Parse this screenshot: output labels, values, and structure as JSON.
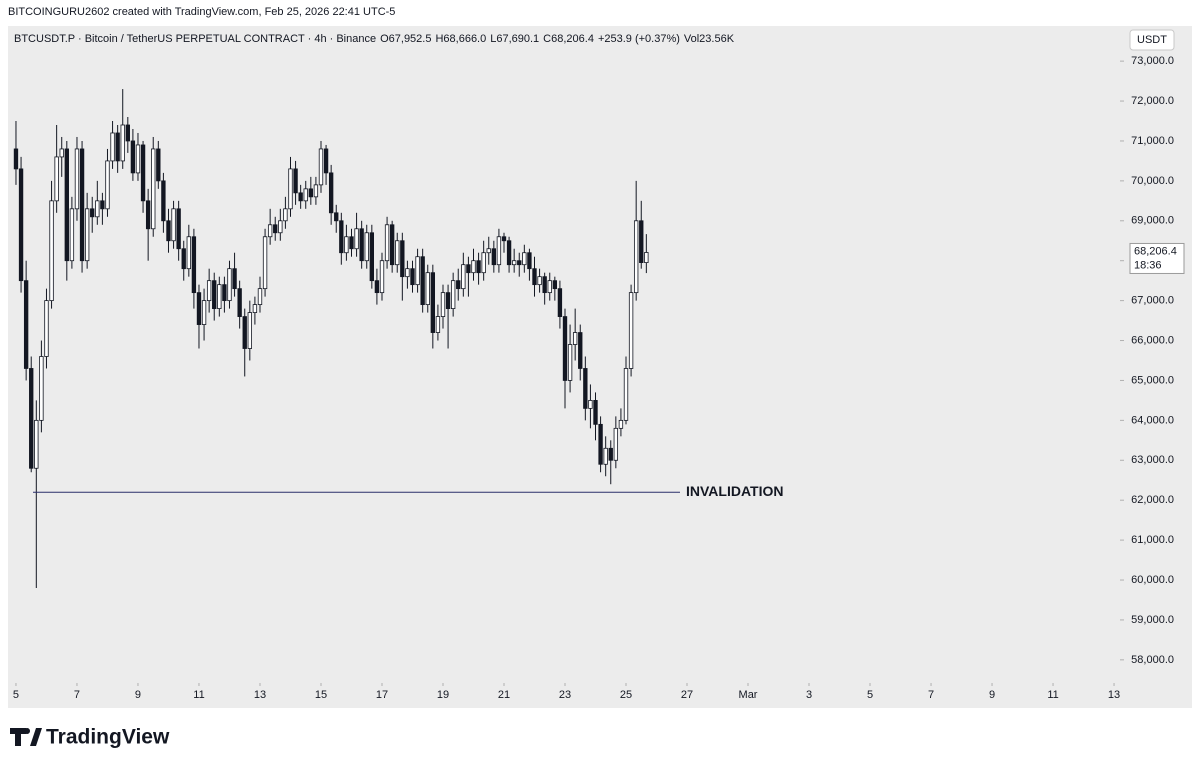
{
  "credit": "BITCOINGURU2602 created with TradingView.com, Feb 25, 2026 22:41 UTC-5",
  "footer": {
    "brand": "TradingView"
  },
  "chart_data": {
    "type": "candlestick",
    "title": "BTCUSDT.P · Bitcoin / TetherUS PERPETUAL CONTRACT · 4h · Binance",
    "legend_values": [
      "O67,952.5",
      "H68,666.0",
      "L67,690.1",
      "C68,206.4",
      "+253.9 (+0.37%)",
      "Vol23.56K"
    ],
    "currency": "USDT",
    "last_price": {
      "label": "68,206.4",
      "countdown": "18:36"
    },
    "annotation": {
      "text": "INVALIDATION",
      "value": 62200
    },
    "up_color": "#ffffff",
    "down_color": "#131722",
    "wick_color": "#131722",
    "xlim": [
      91.3,
      964.7
    ],
    "xticks": [
      {
        "value": 96,
        "label": "5"
      },
      {
        "value": 144,
        "label": "7"
      },
      {
        "value": 192,
        "label": "9"
      },
      {
        "value": 240,
        "label": "11"
      },
      {
        "value": 288,
        "label": "13"
      },
      {
        "value": 336,
        "label": "15"
      },
      {
        "value": 384,
        "label": "17"
      },
      {
        "value": 432,
        "label": "19"
      },
      {
        "value": 480,
        "label": "21"
      },
      {
        "value": 528,
        "label": "23"
      },
      {
        "value": 576,
        "label": "25"
      },
      {
        "value": 624,
        "label": "27"
      },
      {
        "value": 672,
        "label": "Mar"
      },
      {
        "value": 720,
        "label": "3"
      },
      {
        "value": 768,
        "label": "5"
      },
      {
        "value": 816,
        "label": "7"
      },
      {
        "value": 864,
        "label": "9"
      },
      {
        "value": 912,
        "label": "11"
      },
      {
        "value": 960,
        "label": "13"
      }
    ],
    "ylim": [
      57420,
      73830
    ],
    "yticks": [
      {
        "value": 58000,
        "label": "58,000.0"
      },
      {
        "value": 59000,
        "label": "59,000.0"
      },
      {
        "value": 60000,
        "label": "60,000.0"
      },
      {
        "value": 61000,
        "label": "61,000.0"
      },
      {
        "value": 62000,
        "label": "62,000.0"
      },
      {
        "value": 63000,
        "label": "63,000.0"
      },
      {
        "value": 64000,
        "label": "64,000.0"
      },
      {
        "value": 65000,
        "label": "65,000.0"
      },
      {
        "value": 66000,
        "label": "66,000.0"
      },
      {
        "value": 67000,
        "label": "67,000.0"
      },
      {
        "value": 68000,
        "label": "68,000.0"
      },
      {
        "value": 69000,
        "label": "69,000.0"
      },
      {
        "value": 70000,
        "label": "70,000.0"
      },
      {
        "value": 71000,
        "label": "71,000.0"
      },
      {
        "value": 72000,
        "label": "72,000.0"
      },
      {
        "value": 73000,
        "label": "73,000.0"
      }
    ],
    "x": [
      96,
      100,
      104,
      108,
      112,
      116,
      120,
      124,
      128,
      132,
      136,
      140,
      144,
      148,
      152,
      156,
      160,
      164,
      168,
      172,
      176,
      180,
      184,
      188,
      192,
      196,
      200,
      204,
      208,
      212,
      216,
      220,
      224,
      228,
      232,
      236,
      240,
      244,
      248,
      252,
      256,
      260,
      264,
      268,
      272,
      276,
      280,
      284,
      288,
      292,
      296,
      300,
      304,
      308,
      312,
      316,
      320,
      324,
      328,
      332,
      336,
      340,
      344,
      348,
      352,
      356,
      360,
      364,
      368,
      372,
      376,
      380,
      384,
      388,
      392,
      396,
      400,
      404,
      408,
      412,
      416,
      420,
      424,
      428,
      432,
      436,
      440,
      444,
      448,
      452,
      456,
      460,
      464,
      468,
      472,
      476,
      480,
      484,
      488,
      492,
      496,
      500,
      504,
      508,
      512,
      516,
      520,
      524,
      528,
      532,
      536,
      540,
      544,
      548,
      552,
      556,
      560,
      564,
      568,
      572,
      576,
      580,
      584,
      588,
      592
    ],
    "open": [
      70800,
      70300,
      67500,
      65300,
      62800,
      64000,
      65600,
      67000,
      69500,
      70600,
      70800,
      68000,
      69300,
      70800,
      68000,
      69300,
      69100,
      69500,
      69300,
      70500,
      71200,
      70500,
      71400,
      71000,
      70200,
      70900,
      69500,
      68800,
      70800,
      70000,
      69000,
      68500,
      69300,
      68300,
      67800,
      68600,
      67200,
      66400,
      67000,
      67500,
      66800,
      67400,
      67000,
      67800,
      67300,
      66600,
      65800,
      66700,
      66900,
      67300,
      68600,
      68900,
      68700,
      69000,
      69300,
      70300,
      69700,
      69500,
      69800,
      69600,
      69900,
      70800,
      70200,
      69200,
      69000,
      68200,
      68600,
      68300,
      68800,
      68000,
      68700,
      67500,
      67200,
      68000,
      68900,
      67900,
      68500,
      67600,
      67800,
      67400,
      68100,
      66900,
      67700,
      66200,
      66600,
      67200,
      66800,
      67500,
      67300,
      67900,
      67700,
      68000,
      67700,
      68200,
      68300,
      67900,
      68600,
      68500,
      67900,
      68000,
      67900,
      68200,
      67800,
      67400,
      67600,
      67200,
      67500,
      67300,
      66600,
      65000,
      65900,
      66200,
      65300,
      64300,
      64500,
      63900,
      62900,
      63300,
      63000,
      63800,
      64000,
      65300,
      67200,
      69000,
      67952.5
    ],
    "high": [
      71500,
      70600,
      68000,
      65600,
      64500,
      66000,
      67300,
      70000,
      71400,
      71100,
      71000,
      69600,
      71100,
      71000,
      69700,
      69600,
      70000,
      69700,
      70800,
      71500,
      71400,
      72300,
      71600,
      71300,
      71200,
      71000,
      69800,
      71100,
      71000,
      70200,
      69300,
      69500,
      69500,
      68500,
      68900,
      68800,
      67400,
      67300,
      67800,
      67700,
      67600,
      67600,
      68000,
      68200,
      67500,
      66800,
      67000,
      67100,
      67600,
      68800,
      69300,
      69100,
      69300,
      69600,
      70600,
      70500,
      69900,
      70000,
      70100,
      70100,
      71000,
      70900,
      70400,
      69400,
      69200,
      68900,
      68800,
      69200,
      69000,
      68900,
      68900,
      67800,
      68200,
      69100,
      69000,
      68700,
      68700,
      68000,
      68000,
      68300,
      68300,
      67900,
      67900,
      66900,
      67400,
      67400,
      67700,
      67800,
      68200,
      68100,
      68300,
      68200,
      68500,
      68600,
      68500,
      68800,
      68700,
      68600,
      68300,
      68200,
      68400,
      68300,
      68100,
      67800,
      67700,
      67700,
      67600,
      67500,
      66800,
      66400,
      66800,
      66400,
      65600,
      64900,
      64700,
      64100,
      63600,
      63500,
      64100,
      64300,
      65600,
      67400,
      70000,
      69500,
      68666
    ],
    "low": [
      69900,
      67200,
      65000,
      62700,
      59800,
      63700,
      65300,
      66800,
      69200,
      70100,
      67500,
      67800,
      69000,
      67700,
      67800,
      68700,
      68900,
      68900,
      69100,
      70300,
      70200,
      70300,
      70700,
      70000,
      70000,
      69200,
      68000,
      68600,
      69800,
      68700,
      68200,
      68300,
      68000,
      67500,
      67600,
      66800,
      65800,
      66000,
      66700,
      66500,
      66600,
      66700,
      66800,
      67100,
      66300,
      65100,
      65500,
      66400,
      66700,
      67100,
      68400,
      68500,
      68500,
      68800,
      69100,
      69400,
      69300,
      69300,
      69400,
      69400,
      69700,
      69900,
      68900,
      68700,
      67900,
      68000,
      68100,
      68100,
      67800,
      67800,
      67300,
      66900,
      67000,
      67800,
      67700,
      67700,
      67000,
      67300,
      67200,
      67200,
      66700,
      66700,
      65800,
      66000,
      66300,
      65800,
      66600,
      67000,
      67100,
      67100,
      67500,
      67400,
      67500,
      67900,
      67700,
      67700,
      68200,
      67700,
      67700,
      67600,
      67700,
      67500,
      67100,
      67200,
      66900,
      67000,
      67000,
      66300,
      64300,
      64700,
      65500,
      65000,
      64000,
      63800,
      63500,
      62700,
      62600,
      62400,
      62800,
      63600,
      63900,
      65100,
      67000,
      67800,
      67690.1
    ],
    "close": [
      70300,
      67500,
      65300,
      62800,
      64000,
      65600,
      67000,
      69500,
      70600,
      70800,
      68000,
      69300,
      70800,
      68000,
      69300,
      69100,
      69500,
      69300,
      70500,
      71200,
      70500,
      71400,
      71000,
      70200,
      70900,
      69500,
      68800,
      70800,
      70000,
      69000,
      68500,
      69300,
      68300,
      67800,
      68600,
      67200,
      66400,
      67000,
      67500,
      66800,
      67400,
      67000,
      67800,
      67300,
      66600,
      65800,
      66700,
      66900,
      67300,
      68600,
      68900,
      68700,
      69000,
      69300,
      70300,
      69700,
      69500,
      69800,
      69600,
      69900,
      70800,
      70200,
      69200,
      69000,
      68200,
      68600,
      68300,
      68800,
      68000,
      68700,
      67500,
      67200,
      68000,
      68900,
      67900,
      68500,
      67600,
      67800,
      67400,
      68100,
      66900,
      67700,
      66200,
      66600,
      67200,
      66800,
      67500,
      67300,
      67900,
      67700,
      68000,
      67700,
      68200,
      68300,
      67900,
      68600,
      68500,
      67900,
      68000,
      67900,
      68200,
      67800,
      67400,
      67600,
      67200,
      67500,
      67300,
      66600,
      65000,
      65900,
      66200,
      65300,
      64300,
      64500,
      63900,
      62900,
      63300,
      63000,
      63800,
      64000,
      65300,
      67200,
      69000,
      67952.5,
      68206.4
    ]
  }
}
